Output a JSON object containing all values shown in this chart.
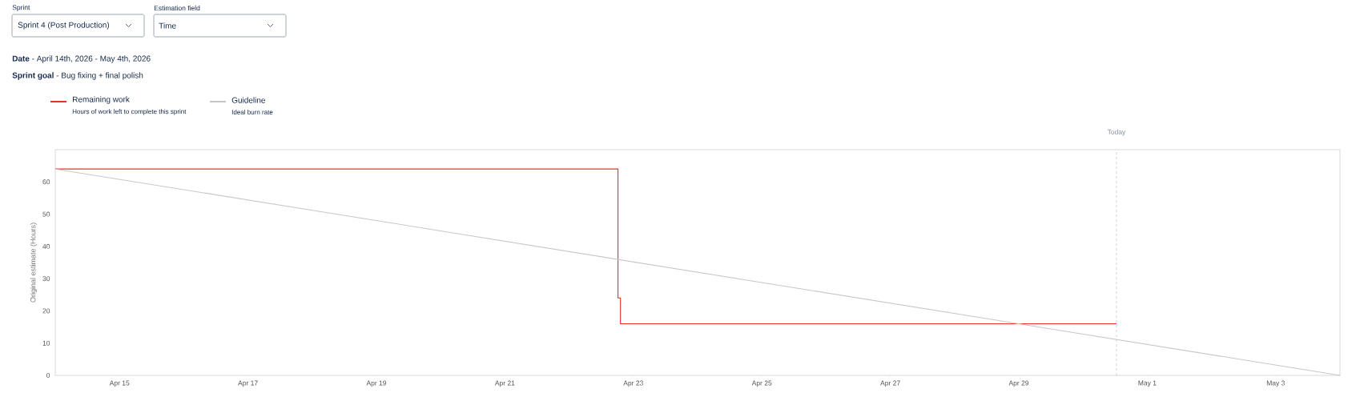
{
  "chart_data": {
    "type": "step",
    "ylabel": "Original estimate (Hours)",
    "annotations": [
      "Sprint",
      "Sprint 4 (Post Production)",
      "Estimation field",
      "Time",
      "**Date** - April 14th, 2026 - May 4th, 2026",
      "**Sprint goal** - Bug fixing + final polish",
      "Hours of work left to complete this sprint",
      "Ideal burn rate"
    ],
    "xlim": [
      "2026-04-14",
      "2026-05-04"
    ],
    "xticks": [
      {
        "value": "2026-04-15",
        "label": "Apr 15"
      },
      {
        "value": "2026-04-17",
        "label": "Apr 17"
      },
      {
        "value": "2026-04-19",
        "label": "Apr 19"
      },
      {
        "value": "2026-04-21",
        "label": "Apr 21"
      },
      {
        "value": "2026-04-23",
        "label": "Apr 23"
      },
      {
        "value": "2026-04-25",
        "label": "Apr 25"
      },
      {
        "value": "2026-04-27",
        "label": "Apr 27"
      },
      {
        "value": "2026-04-29",
        "label": "Apr 29"
      },
      {
        "value": "2026-05-01",
        "label": "May 1"
      },
      {
        "value": "2026-05-03",
        "label": "May 3"
      }
    ],
    "ylim": [
      0,
      70
    ],
    "yticks": [
      0,
      10,
      20,
      30,
      40,
      50,
      60
    ],
    "legend": "top",
    "series": [
      {
        "name": "Remaining work",
        "color": "#e8322b",
        "x": [
          "2026-04-14",
          "2026-04-22T18:15",
          "2026-04-22T19:10",
          "2026-04-30T12:30"
        ],
        "values": [
          64,
          24,
          16,
          16
        ]
      },
      {
        "name": "Guideline",
        "color": "#c8c8c8",
        "type": "line",
        "x": [
          "2026-04-14",
          "2026-05-04"
        ],
        "values": [
          64,
          0
        ]
      }
    ],
    "ref_lines": [
      {
        "axis": "x",
        "value": "2026-04-30T12:30",
        "label": "Today",
        "color": "#a9b8cc",
        "line_style": "dashed"
      }
    ]
  }
}
